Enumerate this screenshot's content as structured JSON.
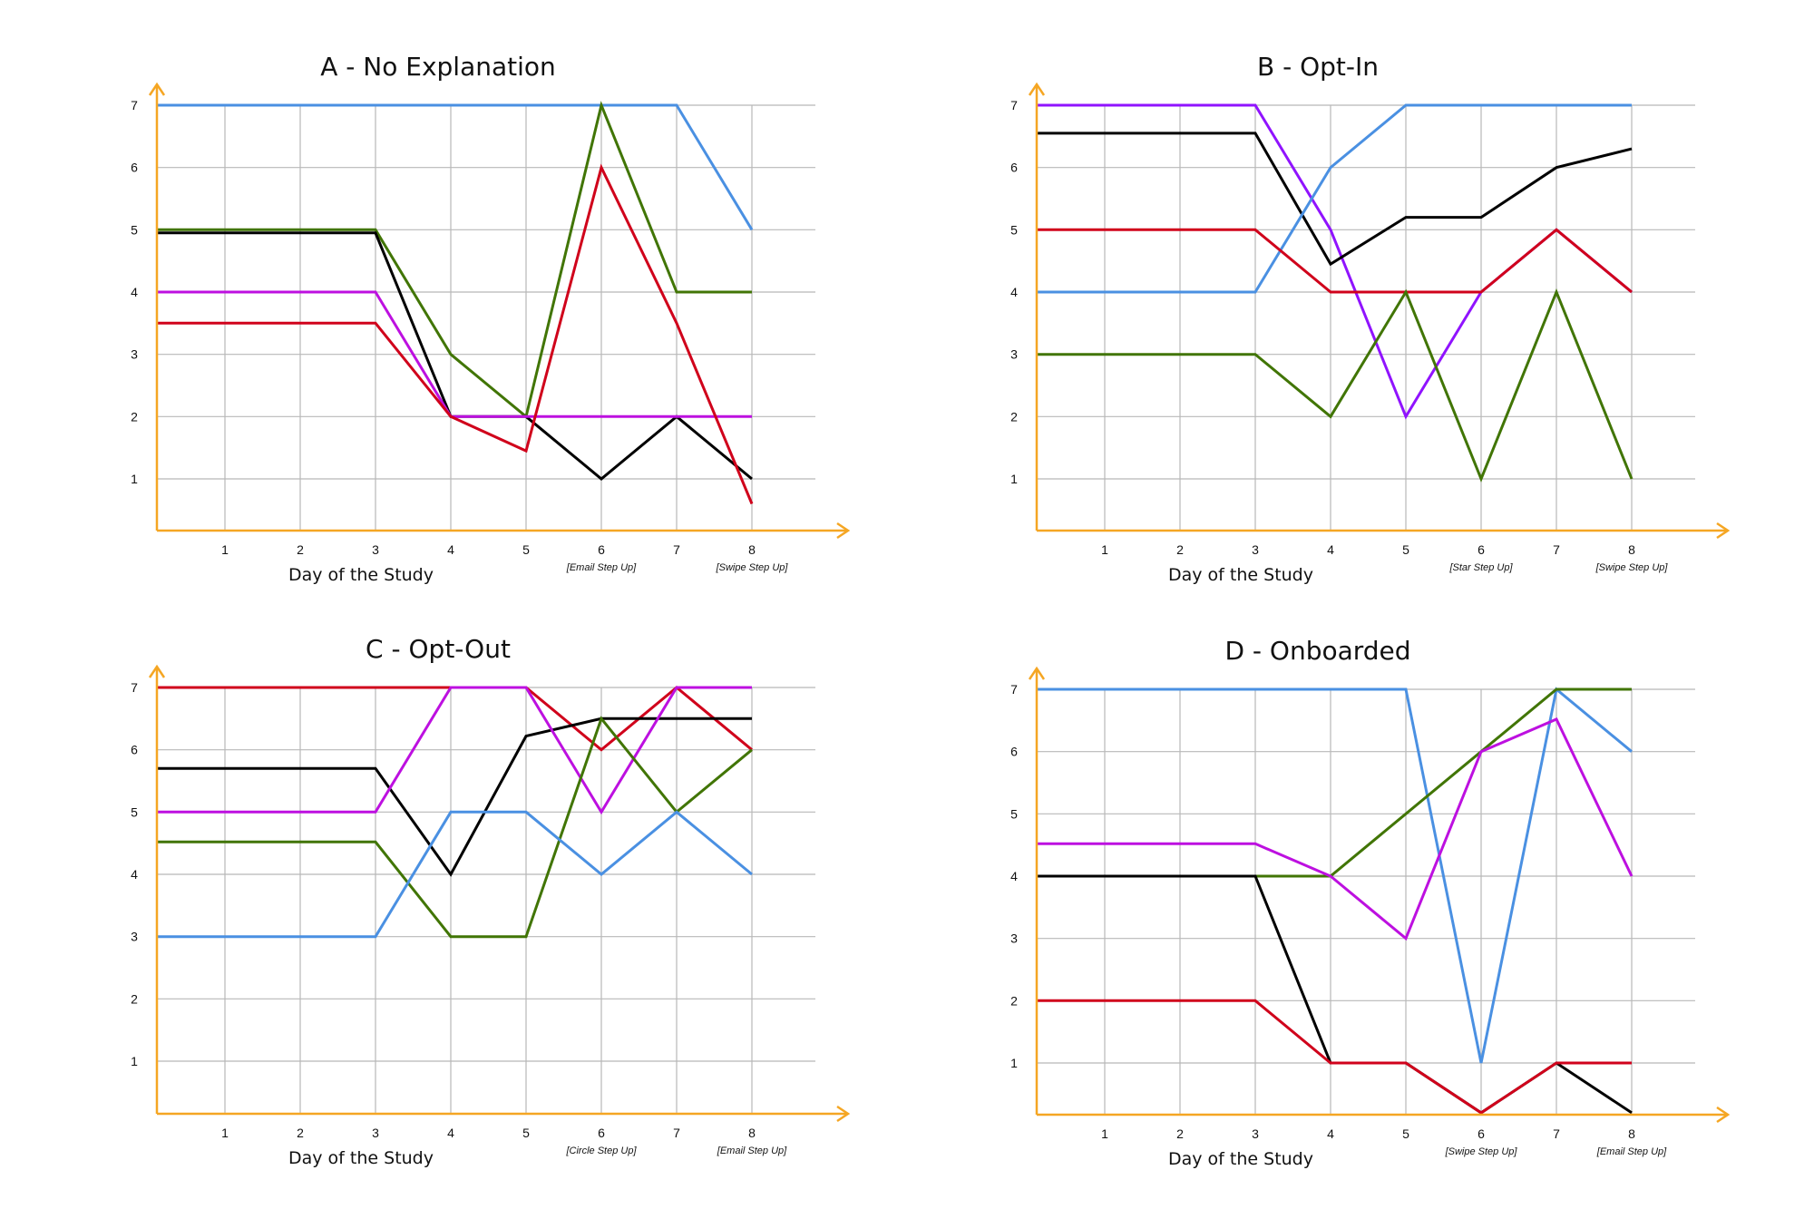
{
  "figure": {
    "axis_color": "#F5A623",
    "grid_color": "#B8B8B8",
    "series_colors": {
      "blue": "#4A90E2",
      "green": "#417505",
      "red": "#D0021B",
      "black": "#000000",
      "purple": "#9013FE",
      "magenta": "#BD10E0"
    }
  },
  "chart_data": [
    {
      "type": "line",
      "title": "A - No Explanation",
      "xlabel": "Day of the Study",
      "ylabel": "",
      "x": [
        1,
        2,
        3,
        4,
        5,
        6,
        7,
        8
      ],
      "x_tick_labels": [
        "1",
        "2",
        "3",
        "4",
        "5",
        "6",
        "7",
        "8"
      ],
      "y_tick_labels": [
        "1",
        "2",
        "3",
        "4",
        "5",
        "6",
        "7"
      ],
      "annotations": [
        {
          "x": 6,
          "text": "[Email Step Up]"
        },
        {
          "x": 8,
          "text": "[Swipe Step Up]"
        }
      ],
      "xlim": [
        0.1,
        9.3
      ],
      "ylim": [
        0.2,
        7.3
      ],
      "grid": true,
      "legend": "none",
      "series": [
        {
          "color": "#4A90E2",
          "x": [
            0.1,
            1,
            2,
            3,
            4,
            5,
            6,
            7,
            8
          ],
          "y": [
            7,
            7,
            7,
            7,
            7,
            7,
            7,
            7,
            5
          ]
        },
        {
          "color": "#417505",
          "x": [
            0.1,
            1,
            2,
            3,
            4,
            5,
            6,
            7,
            8
          ],
          "y": [
            5,
            5,
            5,
            5,
            3,
            2,
            7,
            4,
            4
          ]
        },
        {
          "color": "#000000",
          "x": [
            0.1,
            1,
            2,
            3,
            4,
            5,
            6,
            7,
            8
          ],
          "y": [
            4.95,
            4.95,
            4.95,
            4.95,
            2,
            2,
            1,
            2,
            1
          ]
        },
        {
          "color": "#BD10E0",
          "x": [
            0.1,
            1,
            2,
            3,
            4,
            5,
            6,
            7,
            8
          ],
          "y": [
            4,
            4,
            4,
            4,
            2,
            2,
            2,
            2,
            2
          ]
        },
        {
          "color": "#D0021B",
          "x": [
            0.1,
            1,
            2,
            3,
            4,
            5,
            6,
            7,
            8
          ],
          "y": [
            3.5,
            3.5,
            3.5,
            3.5,
            2,
            1.45,
            6,
            3.5,
            0.6
          ]
        }
      ]
    },
    {
      "type": "line",
      "title": "B - Opt-In",
      "xlabel": "Day of the Study",
      "ylabel": "",
      "x": [
        1,
        2,
        3,
        4,
        5,
        6,
        7,
        8
      ],
      "x_tick_labels": [
        "1",
        "2",
        "3",
        "4",
        "5",
        "6",
        "7",
        "8"
      ],
      "y_tick_labels": [
        "1",
        "2",
        "3",
        "4",
        "5",
        "6",
        "7"
      ],
      "annotations": [
        {
          "x": 6,
          "text": "[Star Step Up]"
        },
        {
          "x": 8,
          "text": "[Swipe Step Up]"
        }
      ],
      "xlim": [
        0.1,
        9.3
      ],
      "ylim": [
        0.2,
        7.3
      ],
      "grid": true,
      "legend": "none",
      "series": [
        {
          "color": "#9013FE",
          "x": [
            0.1,
            1,
            2,
            3,
            4,
            5,
            6,
            7,
            8
          ],
          "y": [
            7,
            7,
            7,
            7,
            5,
            2,
            4,
            5,
            4
          ]
        },
        {
          "color": "#000000",
          "x": [
            0.1,
            1,
            2,
            3,
            4,
            5,
            6,
            7,
            8
          ],
          "y": [
            6.55,
            6.55,
            6.55,
            6.55,
            4.45,
            5.2,
            5.2,
            6,
            6.3
          ]
        },
        {
          "color": "#4A90E2",
          "x": [
            0.1,
            1,
            2,
            3,
            4,
            5,
            6,
            7,
            8
          ],
          "y": [
            4,
            4,
            4,
            4,
            6,
            7,
            7,
            7,
            7
          ]
        },
        {
          "color": "#D0021B",
          "x": [
            0.1,
            1,
            2,
            3,
            4,
            5,
            6,
            7,
            8
          ],
          "y": [
            5,
            5,
            5,
            5,
            4,
            4,
            4,
            5,
            4
          ]
        },
        {
          "color": "#417505",
          "x": [
            0.1,
            1,
            2,
            3,
            4,
            5,
            6,
            7,
            8
          ],
          "y": [
            3,
            3,
            3,
            3,
            2,
            4,
            1,
            4,
            1
          ]
        }
      ]
    },
    {
      "type": "line",
      "title": "C - Opt-Out",
      "xlabel": "Day of the Study",
      "ylabel": "",
      "x": [
        1,
        2,
        3,
        4,
        5,
        6,
        7,
        8
      ],
      "x_tick_labels": [
        "1",
        "2",
        "3",
        "4",
        "5",
        "6",
        "7",
        "8"
      ],
      "y_tick_labels": [
        "1",
        "2",
        "3",
        "4",
        "5",
        "6",
        "7"
      ],
      "annotations": [
        {
          "x": 6,
          "text": "[Circle Step Up]"
        },
        {
          "x": 8,
          "text": "[Email Step Up]"
        }
      ],
      "xlim": [
        0.1,
        9.3
      ],
      "ylim": [
        0.2,
        7.3
      ],
      "grid": true,
      "legend": "none",
      "series": [
        {
          "color": "#D0021B",
          "x": [
            0.1,
            1,
            2,
            3,
            4,
            5,
            6,
            7,
            8
          ],
          "y": [
            7,
            7,
            7,
            7,
            7,
            7,
            6,
            7,
            6
          ]
        },
        {
          "color": "#000000",
          "x": [
            0.1,
            1,
            2,
            3,
            4,
            5,
            6,
            7,
            8
          ],
          "y": [
            5.7,
            5.7,
            5.7,
            5.7,
            4,
            6.22,
            6.5,
            6.5,
            6.5
          ]
        },
        {
          "color": "#BD10E0",
          "x": [
            0.1,
            1,
            2,
            3,
            4,
            5,
            6,
            7,
            8
          ],
          "y": [
            5,
            5,
            5,
            5,
            7,
            7,
            5,
            7,
            7
          ]
        },
        {
          "color": "#417505",
          "x": [
            0.1,
            1,
            2,
            3,
            4,
            5,
            6,
            7,
            8
          ],
          "y": [
            4.52,
            4.52,
            4.52,
            4.52,
            3,
            3,
            6.5,
            5,
            6
          ]
        },
        {
          "color": "#4A90E2",
          "x": [
            0.1,
            1,
            2,
            3,
            4,
            5,
            6,
            7,
            8
          ],
          "y": [
            3,
            3,
            3,
            3,
            5,
            5,
            4,
            5,
            4
          ]
        }
      ]
    },
    {
      "type": "line",
      "title": "D - Onboarded",
      "xlabel": "Day of the Study",
      "ylabel": "",
      "x": [
        1,
        2,
        3,
        4,
        5,
        6,
        7,
        8
      ],
      "x_tick_labels": [
        "1",
        "2",
        "3",
        "4",
        "5",
        "6",
        "7",
        "8"
      ],
      "y_tick_labels": [
        "1",
        "2",
        "3",
        "4",
        "5",
        "6",
        "7"
      ],
      "annotations": [
        {
          "x": 6,
          "text": "[Swipe Step Up]"
        },
        {
          "x": 8,
          "text": "[Email Step Up]"
        }
      ],
      "xlim": [
        0.1,
        9.3
      ],
      "ylim": [
        0.2,
        7.3
      ],
      "grid": true,
      "legend": "none",
      "series": [
        {
          "color": "#4A90E2",
          "x": [
            0.1,
            1,
            2,
            3,
            4,
            5,
            6,
            7,
            8
          ],
          "y": [
            7,
            7,
            7,
            7,
            7,
            7,
            1,
            7,
            6
          ]
        },
        {
          "color": "#417505",
          "x": [
            3,
            4,
            5,
            6,
            7,
            8
          ],
          "y": [
            4,
            4,
            5,
            6,
            7,
            7
          ]
        },
        {
          "color": "#BD10E0",
          "x": [
            0.1,
            1,
            2,
            3,
            4,
            5,
            6,
            7,
            8
          ],
          "y": [
            4.52,
            4.52,
            4.52,
            4.52,
            4,
            3,
            6,
            6.52,
            4
          ]
        },
        {
          "color": "#000000",
          "x": [
            0.1,
            1,
            2,
            3,
            4,
            5,
            6,
            7,
            8
          ],
          "y": [
            4,
            4,
            4,
            4,
            1,
            1,
            0.2,
            1,
            0.2
          ]
        },
        {
          "color": "#D0021B",
          "x": [
            0.1,
            1,
            2,
            3,
            4,
            5,
            6,
            7,
            8
          ],
          "y": [
            2,
            2,
            2,
            2,
            1,
            1,
            0.2,
            1,
            1
          ]
        }
      ]
    }
  ]
}
